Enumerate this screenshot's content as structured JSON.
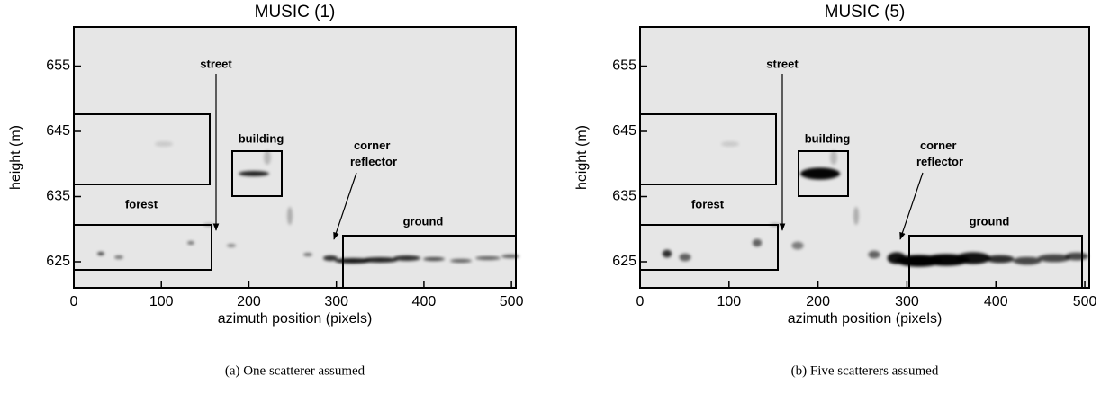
{
  "chart_data": [
    {
      "type": "image",
      "title": "MUSIC (1)",
      "xlabel": "azimuth position (pixels)",
      "ylabel": "height (m)",
      "xlim": [
        0,
        505
      ],
      "ylim": [
        621,
        661
      ],
      "xticks": [
        0,
        100,
        200,
        300,
        400,
        500
      ],
      "yticks": [
        625,
        635,
        645,
        655
      ],
      "annotations": {
        "street": "street",
        "building": "building",
        "corner": "corner reflector",
        "forest": "forest",
        "ground": "ground"
      },
      "caption": "(a) One scatterer assumed"
    },
    {
      "type": "image",
      "title": "MUSIC (5)",
      "xlabel": "azimuth position (pixels)",
      "ylabel": "height (m)",
      "xlim": [
        0,
        505
      ],
      "ylim": [
        621,
        661
      ],
      "xticks": [
        0,
        100,
        200,
        300,
        400,
        500
      ],
      "yticks": [
        625,
        635,
        645,
        655
      ],
      "annotations": {
        "street": "street",
        "building": "building",
        "corner": "corner reflector",
        "forest": "forest",
        "ground": "ground"
      },
      "caption": "(b) Five scatterers assumed"
    }
  ]
}
